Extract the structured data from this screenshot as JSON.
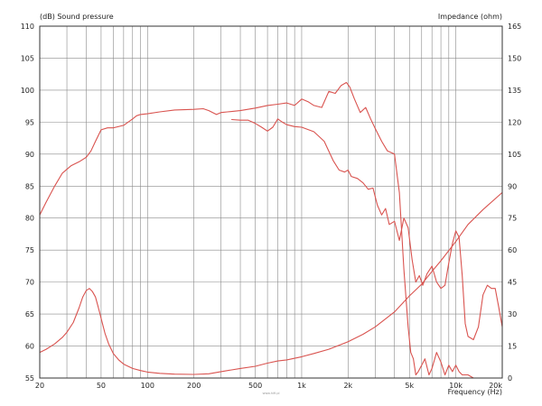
{
  "chart_data": {
    "type": "line",
    "y_left_label": "(dB)  Sound pressure",
    "y_right_label": "Impedance  (ohm)",
    "x_label": "Frequency  (Hz)",
    "watermark": "www.hifi.pl",
    "x_scale": "log",
    "xlim": [
      20,
      20000
    ],
    "ylim_left": [
      55,
      110
    ],
    "ylim_right": [
      0,
      165
    ],
    "grid": true,
    "line_color": "#d9534f",
    "x_ticks": [
      {
        "value": 20,
        "label": "20"
      },
      {
        "value": 50,
        "label": "50"
      },
      {
        "value": 100,
        "label": "100"
      },
      {
        "value": 200,
        "label": "200"
      },
      {
        "value": 500,
        "label": "500"
      },
      {
        "value": 1000,
        "label": "1k"
      },
      {
        "value": 2000,
        "label": "2k"
      },
      {
        "value": 5000,
        "label": "5k"
      },
      {
        "value": 10000,
        "label": "10k"
      },
      {
        "value": 20000,
        "label": "20k"
      }
    ],
    "y_left_ticks": [
      "55",
      "60",
      "65",
      "70",
      "75",
      "80",
      "85",
      "90",
      "95",
      "100",
      "105",
      "110"
    ],
    "y_right_ticks": [
      "0",
      "15",
      "30",
      "45",
      "60",
      "75",
      "90",
      "105",
      "120",
      "135",
      "150",
      "165"
    ],
    "series": [
      {
        "axis": "left",
        "x": [
          20,
          22,
          25,
          28,
          32,
          36,
          40,
          43,
          46,
          50,
          55,
          60,
          70,
          80,
          85,
          90,
          100,
          120,
          150,
          200,
          230,
          250,
          280,
          300,
          330,
          400,
          500,
          600,
          700,
          800,
          900,
          1000,
          1100,
          1200,
          1350,
          1500,
          1650,
          1800,
          1950,
          2050,
          2200,
          2400,
          2600,
          2800,
          3000,
          3300,
          3600,
          4000,
          4300,
          4600,
          4900,
          5100,
          5300,
          5500,
          5700,
          6000,
          6300,
          6700,
          7000,
          7500,
          8000,
          8500,
          9000,
          9500,
          10000,
          10500,
          11000,
          12000,
          13000,
          14000,
          15000,
          16500,
          18000,
          19000,
          20000
        ],
        "y": [
          80.5,
          82.5,
          85,
          87,
          88.2,
          88.8,
          89.5,
          90.5,
          92,
          93.8,
          94.1,
          94.1,
          94.5,
          95.5,
          96,
          96.2,
          96.3,
          96.6,
          96.9,
          97,
          97.1,
          96.8,
          96.2,
          96.5,
          96.6,
          96.8,
          97.2,
          97.6,
          97.8,
          98,
          97.6,
          98.6,
          98.2,
          97.6,
          97.3,
          99.8,
          99.5,
          100.7,
          101.2,
          100.5,
          98.6,
          96.5,
          97.3,
          95.5,
          94,
          92,
          90.5,
          90,
          84,
          72,
          63,
          59,
          58,
          55.5,
          56,
          57,
          58,
          55.5,
          56.5,
          59,
          57.5,
          55.5,
          57,
          56,
          57,
          56,
          55.5,
          55.5,
          55,
          55,
          55,
          55,
          55,
          55,
          55
        ]
      },
      {
        "axis": "left",
        "x": [
          350,
          400,
          450,
          500,
          550,
          600,
          650,
          700,
          750,
          800,
          900,
          1000,
          1200,
          1400,
          1600,
          1750,
          1900,
          2000,
          2100,
          2300,
          2500,
          2700,
          2900,
          3100,
          3300,
          3500,
          3700,
          4000,
          4300,
          4600,
          4900,
          5200,
          5500,
          5800,
          6100,
          6500,
          7000,
          7500,
          8000,
          8500,
          9000,
          9500,
          10000,
          10500,
          11000,
          11500,
          12000,
          13000,
          14000,
          15000,
          16000,
          17000,
          18000,
          19000,
          20000
        ],
        "y": [
          95.4,
          95.3,
          95.3,
          94.8,
          94.2,
          93.6,
          94.2,
          95.5,
          95,
          94.6,
          94.3,
          94.2,
          93.5,
          92,
          89,
          87.5,
          87.2,
          87.5,
          86.5,
          86.2,
          85.5,
          84.5,
          84.7,
          82,
          80.5,
          81.5,
          79,
          79.5,
          76.5,
          80,
          78.5,
          73.5,
          70,
          71,
          69.5,
          71.3,
          72.5,
          70,
          69,
          69.5,
          73,
          76,
          78,
          77,
          71,
          63.5,
          61.5,
          61,
          63,
          68,
          69.5,
          69,
          69,
          66,
          63
        ]
      },
      {
        "axis": "right",
        "x": [
          20,
          22,
          25,
          28,
          30,
          33,
          36,
          38,
          40,
          42,
          44,
          46,
          48,
          50,
          53,
          56,
          60,
          65,
          70,
          80,
          90,
          100,
          120,
          150,
          200,
          250,
          300,
          400,
          500,
          600,
          700,
          800,
          1000,
          1200,
          1500,
          2000,
          2500,
          3000,
          4000,
          5000,
          6000,
          7000,
          8000,
          10000,
          12000,
          15000,
          20000
        ],
        "y": [
          12,
          13.5,
          16,
          19,
          21.5,
          26,
          33,
          38,
          41,
          42,
          40.5,
          38,
          33,
          28,
          21,
          16,
          11.5,
          8.5,
          6.5,
          4.5,
          3.5,
          2.8,
          2.2,
          1.8,
          1.7,
          2,
          3,
          4.5,
          5.5,
          7,
          8,
          8.5,
          10,
          11.5,
          13.5,
          17,
          20.5,
          24,
          31,
          38.5,
          44,
          50,
          55,
          64,
          72,
          79,
          87
        ]
      }
    ]
  }
}
